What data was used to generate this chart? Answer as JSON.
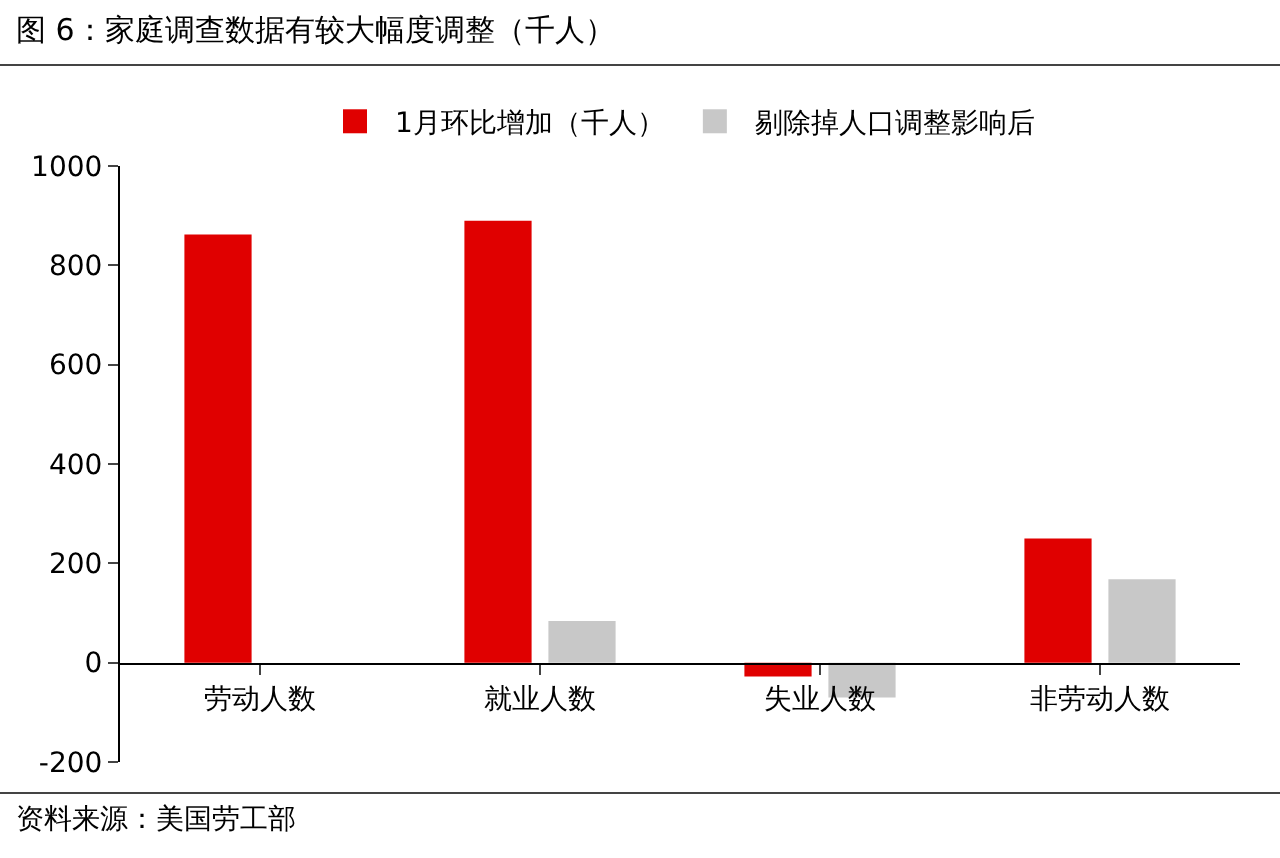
{
  "chart_data": {
    "type": "bar",
    "title": "图 6：家庭调查数据有较大幅度调整（千人）",
    "categories": [
      "劳动人数",
      "就业人数",
      "失业人数",
      "非劳动人数"
    ],
    "series": [
      {
        "name": "1月环比增加（千人）",
        "color": "#e00000",
        "values": [
          862,
          890,
          -28,
          250
        ]
      },
      {
        "name": "剔除掉人口调整影响后",
        "color": "#c8c8c8",
        "values": [
          0,
          84,
          -70,
          168
        ]
      }
    ],
    "ylim": [
      -200,
      1000
    ],
    "yticks": [
      -200,
      0,
      200,
      400,
      600,
      800,
      1000
    ],
    "grid": false,
    "legend": "top",
    "annotations": [
      "资料来源：美国劳工部"
    ]
  }
}
